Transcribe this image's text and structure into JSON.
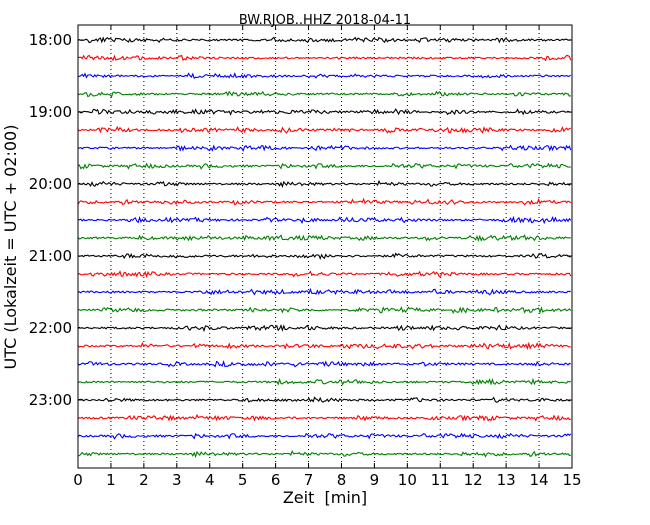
{
  "chart_data": {
    "type": "line",
    "title": "BW.RJOB..HHZ 2018-04-11",
    "xlabel": "Zeit  [min]",
    "ylabel": "UTC (Lokalzeit = UTC + 02:00)",
    "xlim": [
      0,
      15
    ],
    "x_ticks": [
      "0",
      "1",
      "2",
      "3",
      "4",
      "5",
      "6",
      "7",
      "8",
      "9",
      "10",
      "11",
      "12",
      "13",
      "14",
      "15"
    ],
    "y_ticks": [
      "18:00",
      "19:00",
      "20:00",
      "21:00",
      "22:00",
      "23:00"
    ],
    "rows_per_hour": 4,
    "row_count": 24,
    "row_colors": [
      "#000000",
      "#ff0000",
      "#0000ff",
      "#008000"
    ],
    "grid_x": "dotted"
  }
}
